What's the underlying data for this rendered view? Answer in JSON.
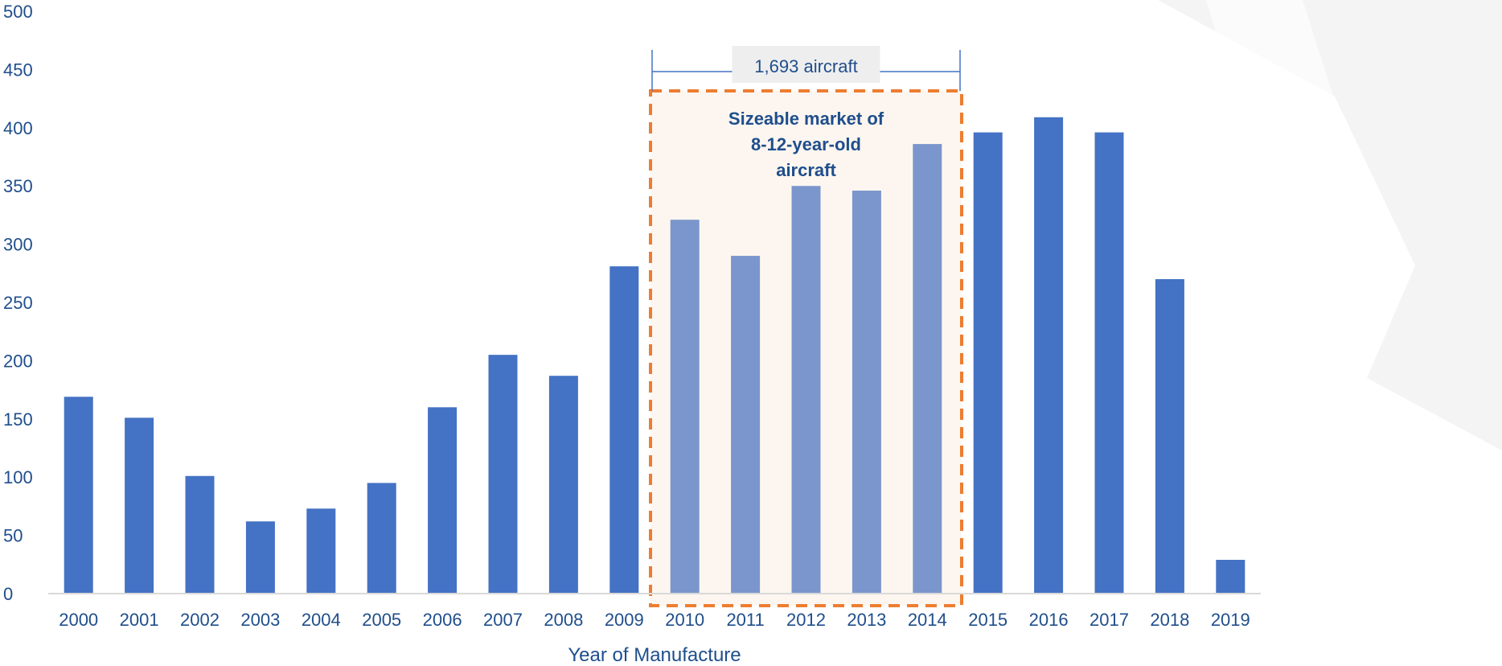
{
  "chart_data": {
    "type": "bar",
    "title": "",
    "xlabel": "Year of Manufacture",
    "ylabel": "",
    "ylim": [
      0,
      500
    ],
    "yticks": [
      0,
      50,
      100,
      150,
      200,
      250,
      300,
      350,
      400,
      450,
      500
    ],
    "grid": false,
    "categories": [
      "2000",
      "2001",
      "2002",
      "2003",
      "2004",
      "2005",
      "2006",
      "2007",
      "2008",
      "2009",
      "2010",
      "2011",
      "2012",
      "2013",
      "2014",
      "2015",
      "2016",
      "2017",
      "2018",
      "2019"
    ],
    "values": [
      169,
      151,
      101,
      62,
      73,
      95,
      160,
      205,
      187,
      281,
      321,
      290,
      350,
      346,
      386,
      396,
      409,
      396,
      270,
      29
    ],
    "highlight": {
      "from": "2010",
      "to": "2014",
      "bracket_label": "1,693 aircraft",
      "box_label_lines": [
        "Sizeable market of",
        "8-12-year-old",
        "aircraft"
      ]
    },
    "colors": {
      "bar": "#4472c4",
      "bar_highlight": "#7b96cc",
      "highlight_fill": "#fdf6f0",
      "highlight_border": "#ed7d31",
      "text": "#1f4e8c",
      "bracket": "#4472c4",
      "bracket_label_bg": "#eeeeee",
      "axis_line": "#d9d9d9",
      "watermark": "#f4f4f4"
    }
  }
}
